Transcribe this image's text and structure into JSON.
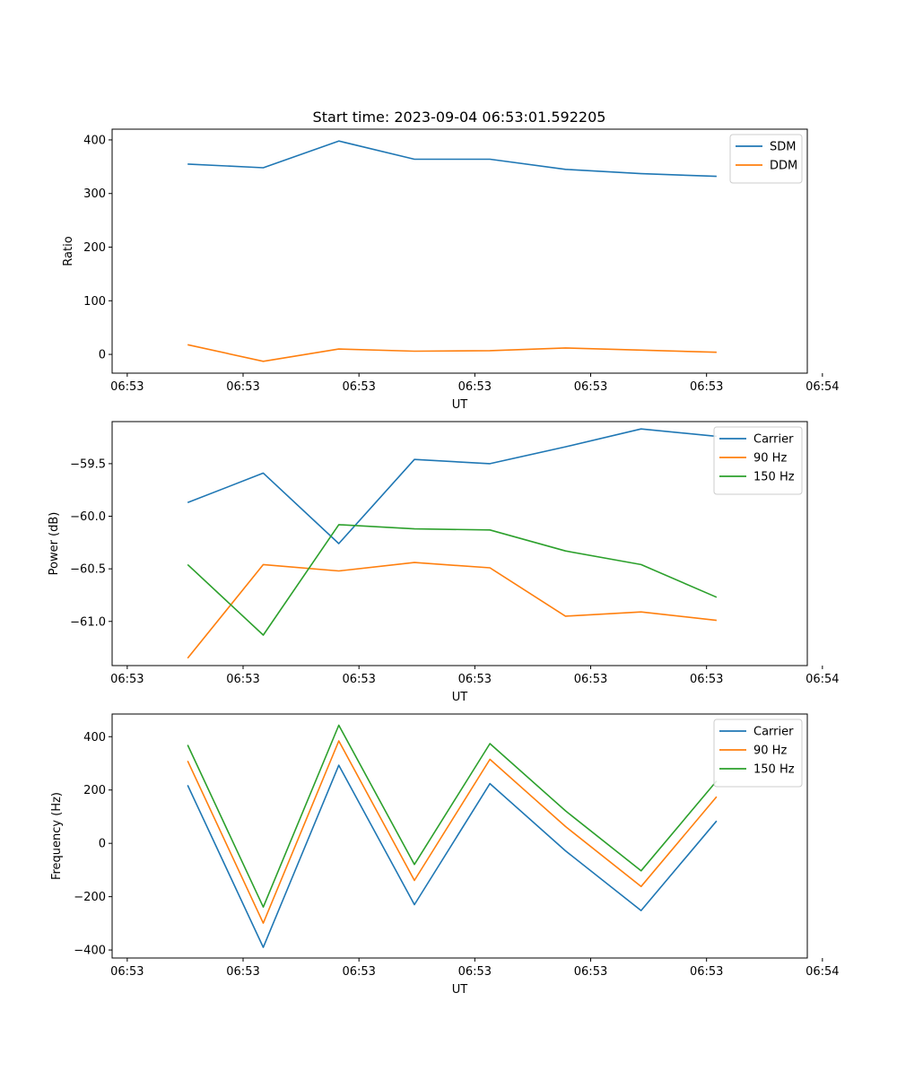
{
  "title": "Start time: 2023-09-04 06:53:01.592205",
  "x_tick_labels": [
    "06:53",
    "06:53",
    "06:53",
    "06:53",
    "06:53",
    "06:53",
    "06:54"
  ],
  "colors": {
    "blue": "#1f77b4",
    "orange": "#ff7f0e",
    "green": "#2ca02c"
  },
  "chart_data": [
    {
      "type": "line",
      "xlabel": "UT",
      "ylabel": "Ratio",
      "ylim": [
        -35,
        420
      ],
      "yticks": [
        0,
        100,
        200,
        300,
        400
      ],
      "ytick_labels": [
        "0",
        "100",
        "200",
        "300",
        "400"
      ],
      "xlim": [
        0,
        9.2
      ],
      "xticks": [
        0.2,
        1.7333,
        3.2667,
        4.8,
        6.3333,
        7.8667,
        9.4
      ],
      "x": [
        1,
        2,
        3,
        4,
        5,
        6,
        7,
        8
      ],
      "legend_position": "top-right",
      "series": [
        {
          "name": "SDM",
          "color": "#1f77b4",
          "values": [
            355,
            348,
            398,
            364,
            364,
            345,
            337,
            332
          ]
        },
        {
          "name": "DDM",
          "color": "#ff7f0e",
          "values": [
            18,
            -13,
            10,
            6,
            7,
            12,
            8,
            4
          ]
        }
      ]
    },
    {
      "type": "line",
      "xlabel": "UT",
      "ylabel": "Power (dB)",
      "ylim": [
        -61.42,
        -59.1
      ],
      "yticks": [
        -61.0,
        -60.5,
        -60.0,
        -59.5
      ],
      "ytick_labels": [
        "−61.0",
        "−60.5",
        "−60.0",
        "−59.5"
      ],
      "xlim": [
        0,
        9.2
      ],
      "xticks": [
        0.2,
        1.7333,
        3.2667,
        4.8,
        6.3333,
        7.8667,
        9.4
      ],
      "x": [
        1,
        2,
        3,
        4,
        5,
        6,
        7,
        8
      ],
      "legend_position": "top-right",
      "series": [
        {
          "name": "Carrier",
          "color": "#1f77b4",
          "values": [
            -59.87,
            -59.59,
            -60.26,
            -59.46,
            -59.5,
            -59.34,
            -59.17,
            -59.24
          ]
        },
        {
          "name": "90 Hz",
          "color": "#ff7f0e",
          "values": [
            -61.35,
            -60.46,
            -60.52,
            -60.44,
            -60.49,
            -60.95,
            -60.91,
            -60.99
          ]
        },
        {
          "name": "150 Hz",
          "color": "#2ca02c",
          "values": [
            -60.46,
            -61.13,
            -60.08,
            -60.12,
            -60.13,
            -60.33,
            -60.46,
            -60.77
          ]
        }
      ]
    },
    {
      "type": "line",
      "xlabel": "UT",
      "ylabel": "Frequency (Hz)",
      "ylim": [
        -430,
        485
      ],
      "yticks": [
        -400,
        -200,
        0,
        200,
        400
      ],
      "ytick_labels": [
        "−400",
        "−200",
        "0",
        "200",
        "400"
      ],
      "xlim": [
        0,
        9.2
      ],
      "xticks": [
        0.2,
        1.7333,
        3.2667,
        4.8,
        6.3333,
        7.8667,
        9.4
      ],
      "x": [
        1,
        2,
        3,
        4,
        5,
        6,
        7,
        8
      ],
      "legend_position": "top-right",
      "series": [
        {
          "name": "Carrier",
          "color": "#1f77b4",
          "values": [
            218,
            -390,
            293,
            -230,
            224,
            -28,
            -252,
            84
          ]
        },
        {
          "name": "90 Hz",
          "color": "#ff7f0e",
          "values": [
            309,
            -299,
            384,
            -139,
            315,
            63,
            -162,
            175
          ]
        },
        {
          "name": "150 Hz",
          "color": "#2ca02c",
          "values": [
            369,
            -239,
            443,
            -79,
            374,
            122,
            -103,
            234
          ]
        }
      ]
    }
  ]
}
